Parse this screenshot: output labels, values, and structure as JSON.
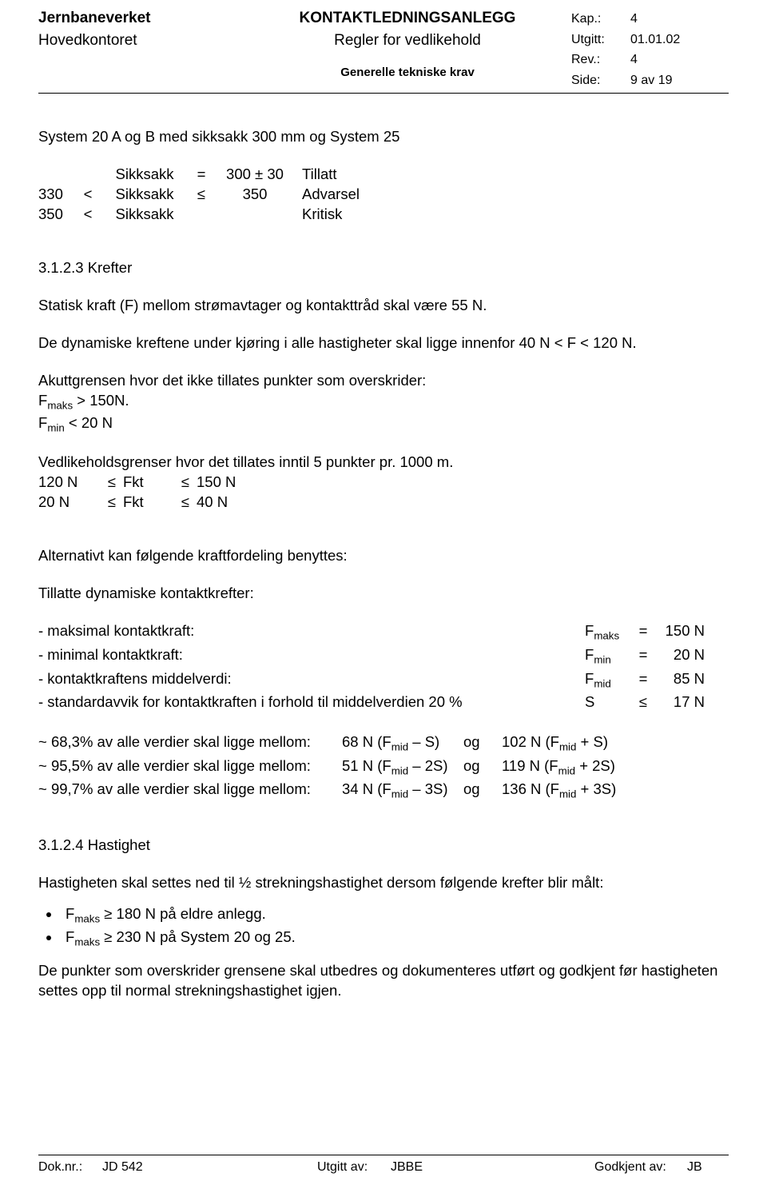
{
  "header": {
    "org": "Jernbaneverket",
    "dept": "Hovedkontoret",
    "title_main": "KONTAKTLEDNINGSANLEGG",
    "title_sub": "Regler for vedlikehold",
    "title_section": "Generelle tekniske krav",
    "meta": {
      "kap_lbl": "Kap.:",
      "kap": "4",
      "utgitt_lbl": "Utgitt:",
      "utgitt": "01.01.02",
      "rev_lbl": "Rev.:",
      "rev": "4",
      "side_lbl": "Side:",
      "side": "9 av 19"
    }
  },
  "s1": {
    "heading": "System 20 A og B med sikksakk 300 mm og System 25",
    "rows": [
      {
        "c1": "",
        "c2": "",
        "c3": "Sikksakk",
        "c4": "=",
        "c5": "300 ± 30",
        "c6": "Tillatt"
      },
      {
        "c1": "330",
        "c2": "<",
        "c3": "Sikksakk",
        "c4": "≤",
        "c5": "350",
        "c6": "Advarsel"
      },
      {
        "c1": "350",
        "c2": "<",
        "c3": "Sikksakk",
        "c4": "",
        "c5": "",
        "c6": "Kritisk"
      }
    ]
  },
  "s2": {
    "heading": "3.1.2.3  Krefter",
    "p1": "Statisk kraft (F) mellom strømavtager og kontakttråd skal være 55 N.",
    "p2": "De dynamiske kreftene under kjøring i alle hastigheter skal ligge innenfor 40 N < F < 120 N.",
    "p3": "Akuttgrensen hvor det ikke tillates punkter som overskrider:",
    "p3a_pre": "F",
    "p3a_sub": "maks",
    "p3a_post": " > 150N.",
    "p3b_pre": "F",
    "p3b_sub": "min",
    "p3b_post": " < 20 N",
    "p4": "Vedlikeholdsgrenser hvor det tillates inntil 5 punkter pr. 1000 m.",
    "rows2": [
      {
        "d1": "120 N",
        "d2": "≤",
        "d3": "Fkt",
        "d4": "≤",
        "d5": "150 N"
      },
      {
        "d1": "20 N",
        "d2": "≤",
        "d3": "Fkt",
        "d4": "≤",
        "d5": "40 N"
      }
    ]
  },
  "s3": {
    "p1": "Alternativt kan følgende kraftfordeling benyttes:",
    "p2": "Tillatte dynamiske kontaktkrefter:",
    "kraft": [
      {
        "label": "- maksimal kontaktkraft:",
        "sym": "F",
        "sub": "maks",
        "eq": "=",
        "num": "150 N"
      },
      {
        "label": "- minimal kontaktkraft:",
        "sym": "F",
        "sub": "min",
        "eq": "=",
        "num": "20 N"
      },
      {
        "label": "- kontaktkraftens middelverdi:",
        "sym": "F",
        "sub": "mid",
        "eq": "=",
        "num": "85 N"
      },
      {
        "label": "- standardavvik for kontaktkraften i forhold til middelverdien 20 %",
        "sym": "S",
        "sub": "",
        "eq": "≤",
        "num": "17 N"
      }
    ],
    "range": [
      {
        "r1": "~ 68,3% av alle verdier skal ligge mellom:",
        "r2a": "68 N (F",
        "r2s": "mid",
        "r2b": " – S)",
        "r3": "og",
        "r4a": "102 N (F",
        "r4s": "mid",
        "r4b": " + S)"
      },
      {
        "r1": "~ 95,5% av alle verdier skal ligge mellom:",
        "r2a": "51 N (F",
        "r2s": "mid",
        "r2b": " – 2S)",
        "r3": "og",
        "r4a": "119 N (F",
        "r4s": "mid",
        "r4b": " + 2S)"
      },
      {
        "r1": "~ 99,7% av alle verdier skal ligge mellom:",
        "r2a": "34 N (F",
        "r2s": "mid",
        "r2b": " – 3S)",
        "r3": "og",
        "r4a": "136 N (F",
        "r4s": "mid",
        "r4b": " + 3S)"
      }
    ]
  },
  "s4": {
    "heading": "3.1.2.4  Hastighet",
    "p1": "Hastigheten skal settes ned til ½ strekningshastighet dersom følgende krefter blir målt:",
    "bullets": [
      {
        "pre": "F",
        "sub": "maks",
        "post": " ≥ 180 N på eldre anlegg."
      },
      {
        "pre": "F",
        "sub": "maks",
        "post": " ≥ 230 N på System 20 og 25."
      }
    ],
    "p2": "De punkter som overskrider grensene skal utbedres og dokumenteres utført og godkjent før hastigheten settes opp til normal strekningshastighet igjen."
  },
  "footer": {
    "doknr_lbl": "Dok.nr.:",
    "doknr": "JD 542",
    "utgitt_lbl": "Utgitt av:",
    "utgitt": "JBBE",
    "godkjent_lbl": "Godkjent av:",
    "godkjent": "JB"
  }
}
